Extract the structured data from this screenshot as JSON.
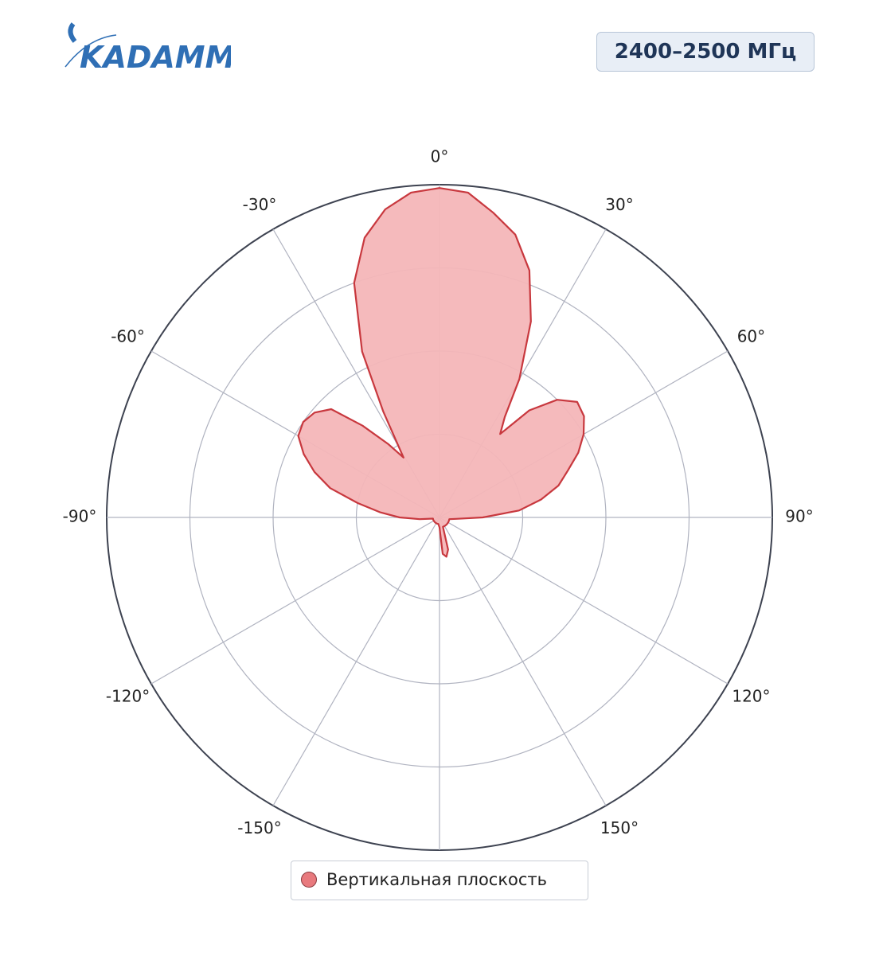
{
  "header": {
    "logo": "KADAMM",
    "badge": "2400–2500 МГц"
  },
  "chart_data": {
    "type": "polar",
    "direction": "clockwise",
    "zero": "top",
    "rlim": [
      0,
      1
    ],
    "rticks": [
      0.25,
      0.5,
      0.75,
      1
    ],
    "thetaticks": [
      {
        "value": 0,
        "label": "0°"
      },
      {
        "value": 30,
        "label": "30°"
      },
      {
        "value": 60,
        "label": "60°"
      },
      {
        "value": 90,
        "label": "90°"
      },
      {
        "value": 120,
        "label": "120°"
      },
      {
        "value": 150,
        "label": "150°"
      },
      {
        "value": 180,
        "label": null
      },
      {
        "value": -150,
        "label": "-150°"
      },
      {
        "value": -120,
        "label": "-120°"
      },
      {
        "value": -90,
        "label": "-90°"
      },
      {
        "value": -60,
        "label": "-60°"
      },
      {
        "value": -30,
        "label": "-30°"
      }
    ],
    "grid": true,
    "series": [
      {
        "name": "Вертикальная плоскость",
        "color": "#c8383e",
        "fill": "#f4b6b8",
        "marker_color": "#e87a7e",
        "theta": [
          -180,
          -170,
          -160,
          -150,
          -140,
          -130,
          -120,
          -110,
          -100,
          -95,
          -90,
          -85,
          -80,
          -75,
          -70,
          -65,
          -60,
          -55,
          -50,
          -45,
          -40,
          -35,
          -31,
          -28,
          -25,
          -20,
          -15,
          -10,
          -5,
          0,
          5,
          10,
          15,
          20,
          25,
          30,
          33,
          36,
          40,
          45,
          50,
          55,
          60,
          65,
          70,
          75,
          80,
          85,
          90,
          95,
          100,
          110,
          120,
          130,
          140,
          150,
          160,
          165,
          170,
          175
        ],
        "r": [
          0.03,
          0.02,
          0.02,
          0.02,
          0.02,
          0.02,
          0.02,
          0.02,
          0.02,
          0.06,
          0.12,
          0.18,
          0.25,
          0.34,
          0.4,
          0.45,
          0.49,
          0.5,
          0.49,
          0.46,
          0.36,
          0.27,
          0.21,
          0.36,
          0.55,
          0.75,
          0.87,
          0.94,
          0.98,
          0.99,
          0.98,
          0.93,
          0.88,
          0.79,
          0.65,
          0.48,
          0.36,
          0.31,
          0.42,
          0.5,
          0.54,
          0.53,
          0.5,
          0.46,
          0.41,
          0.37,
          0.31,
          0.24,
          0.13,
          0.05,
          0.03,
          0.03,
          0.03,
          0.03,
          0.03,
          0.03,
          0.03,
          0.1,
          0.12,
          0.11
        ]
      }
    ]
  }
}
